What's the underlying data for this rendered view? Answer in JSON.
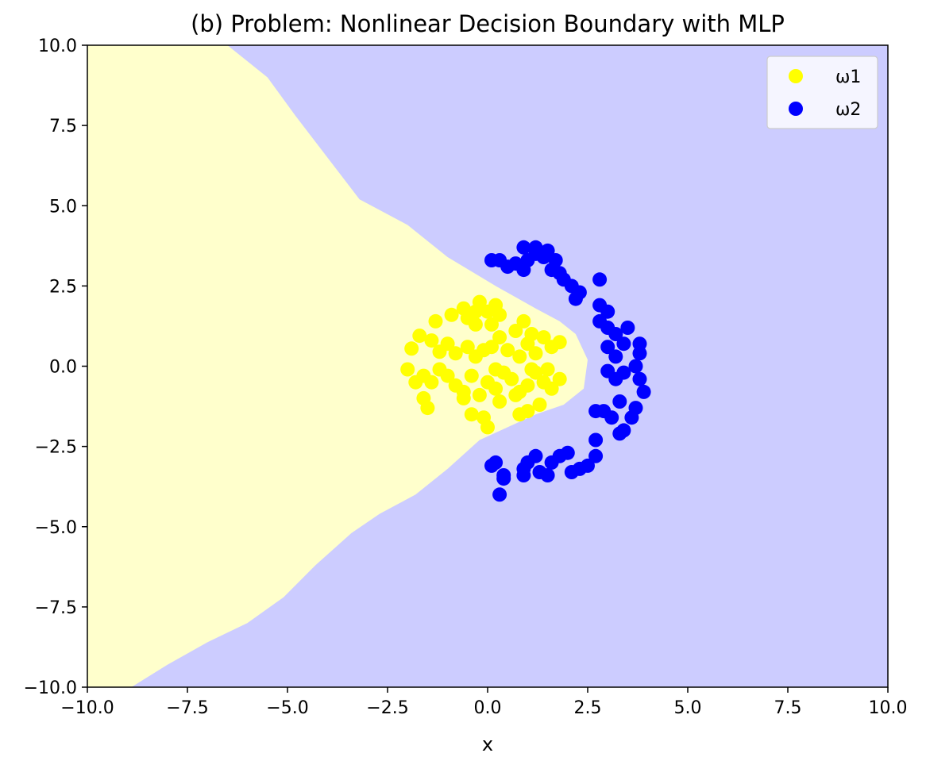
{
  "chart_data": {
    "type": "scatter",
    "title": "(b) Problem: Nonlinear Decision Boundary with MLP",
    "xlabel": "x",
    "ylabel": "",
    "xlim": [
      -10,
      10
    ],
    "ylim": [
      -10,
      10
    ],
    "xticks": [
      "−10.0",
      "−7.5",
      "−5.0",
      "−2.5",
      "0.0",
      "2.5",
      "5.0",
      "7.5",
      "10.0"
    ],
    "yticks": [
      "−10.0",
      "−7.5",
      "−5.0",
      "−2.5",
      "0.0",
      "2.5",
      "5.0",
      "7.5",
      "10.0"
    ],
    "xtick_values": [
      -10,
      -7.5,
      -5,
      -2.5,
      0,
      2.5,
      5,
      7.5,
      10
    ],
    "ytick_values": [
      -10,
      -7.5,
      -5,
      -2.5,
      0,
      2.5,
      5,
      7.5,
      10
    ],
    "grid": false,
    "legend_position": "top-right",
    "background_regions": [
      {
        "class": "ω1",
        "color": "#ffffcc"
      },
      {
        "class": "ω2",
        "color": "#ccccff"
      }
    ],
    "decision_boundary": [
      [
        -6.5,
        10
      ],
      [
        -5.5,
        9
      ],
      [
        -4.8,
        7.8
      ],
      [
        -4.0,
        6.5
      ],
      [
        -3.2,
        5.2
      ],
      [
        -2.0,
        4.4
      ],
      [
        -1.0,
        3.4
      ],
      [
        0.2,
        2.5
      ],
      [
        1.2,
        1.8
      ],
      [
        1.8,
        1.4
      ],
      [
        2.2,
        1.0
      ],
      [
        2.5,
        0.2
      ],
      [
        2.4,
        -0.7
      ],
      [
        1.9,
        -1.2
      ],
      [
        1.2,
        -1.5
      ],
      [
        0.5,
        -1.9
      ],
      [
        -0.2,
        -2.3
      ],
      [
        -1.0,
        -3.2
      ],
      [
        -1.8,
        -4.0
      ],
      [
        -2.7,
        -4.6
      ],
      [
        -3.4,
        -5.2
      ],
      [
        -4.3,
        -6.2
      ],
      [
        -5.1,
        -7.2
      ],
      [
        -6.0,
        -8.0
      ],
      [
        -7.0,
        -8.6
      ],
      [
        -8.0,
        -9.3
      ],
      [
        -8.9,
        -10
      ]
    ],
    "series": [
      {
        "name": "ω1",
        "color": "#ffff00",
        "points": [
          [
            -1.3,
            1.4
          ],
          [
            -0.9,
            1.6
          ],
          [
            -0.6,
            1.8
          ],
          [
            -0.3,
            1.7
          ],
          [
            -0.2,
            2.0
          ],
          [
            0.0,
            1.7
          ],
          [
            0.2,
            1.9
          ],
          [
            0.3,
            1.6
          ],
          [
            0.1,
            1.3
          ],
          [
            -0.3,
            1.3
          ],
          [
            -0.5,
            1.5
          ],
          [
            -1.9,
            0.55
          ],
          [
            -1.7,
            0.95
          ],
          [
            -1.4,
            0.8
          ],
          [
            -1.2,
            0.45
          ],
          [
            -1.0,
            0.7
          ],
          [
            -0.8,
            0.4
          ],
          [
            -0.5,
            0.6
          ],
          [
            -0.3,
            0.3
          ],
          [
            -0.1,
            0.5
          ],
          [
            0.1,
            0.6
          ],
          [
            0.3,
            0.9
          ],
          [
            0.5,
            0.5
          ],
          [
            0.7,
            1.1
          ],
          [
            0.9,
            1.4
          ],
          [
            1.0,
            0.7
          ],
          [
            1.2,
            0.4
          ],
          [
            1.4,
            0.9
          ],
          [
            1.6,
            0.6
          ],
          [
            1.8,
            0.75
          ],
          [
            1.1,
            1.0
          ],
          [
            0.8,
            0.3
          ],
          [
            -2.0,
            -0.1
          ],
          [
            -1.8,
            -0.5
          ],
          [
            -1.6,
            -0.3
          ],
          [
            -1.4,
            -0.5
          ],
          [
            -1.2,
            -0.1
          ],
          [
            -1.0,
            -0.3
          ],
          [
            -0.8,
            -0.6
          ],
          [
            -0.6,
            -0.8
          ],
          [
            -0.4,
            -0.3
          ],
          [
            -0.2,
            -0.9
          ],
          [
            0.0,
            -0.5
          ],
          [
            0.2,
            -0.1
          ],
          [
            0.4,
            -0.2
          ],
          [
            0.6,
            -0.4
          ],
          [
            0.8,
            -0.8
          ],
          [
            1.0,
            -0.6
          ],
          [
            1.2,
            -0.2
          ],
          [
            1.4,
            -0.5
          ],
          [
            1.6,
            -0.7
          ],
          [
            1.8,
            -0.4
          ],
          [
            1.5,
            -0.1
          ],
          [
            1.1,
            -0.1
          ],
          [
            -1.6,
            -1.0
          ],
          [
            -1.5,
            -1.3
          ],
          [
            -0.6,
            -1.0
          ],
          [
            -0.4,
            -1.5
          ],
          [
            -0.1,
            -1.6
          ],
          [
            0.0,
            -1.9
          ],
          [
            0.3,
            -1.1
          ],
          [
            0.8,
            -1.5
          ],
          [
            1.0,
            -1.4
          ],
          [
            1.3,
            -1.2
          ],
          [
            0.7,
            -0.9
          ],
          [
            0.2,
            -0.7
          ]
        ]
      },
      {
        "name": "ω2",
        "color": "#0000ff",
        "points": [
          [
            0.1,
            3.3
          ],
          [
            0.3,
            3.3
          ],
          [
            0.5,
            3.1
          ],
          [
            0.7,
            3.2
          ],
          [
            0.9,
            3.0
          ],
          [
            1.0,
            3.3
          ],
          [
            1.2,
            3.5
          ],
          [
            1.4,
            3.4
          ],
          [
            1.6,
            3.0
          ],
          [
            1.7,
            3.3
          ],
          [
            1.9,
            2.7
          ],
          [
            2.1,
            2.5
          ],
          [
            2.3,
            2.3
          ],
          [
            0.9,
            3.7
          ],
          [
            1.2,
            3.7
          ],
          [
            1.5,
            3.6
          ],
          [
            1.8,
            2.9
          ],
          [
            2.8,
            2.7
          ],
          [
            2.2,
            2.1
          ],
          [
            2.8,
            1.9
          ],
          [
            3.0,
            1.7
          ],
          [
            2.8,
            1.4
          ],
          [
            3.0,
            1.2
          ],
          [
            3.2,
            1.0
          ],
          [
            3.4,
            0.7
          ],
          [
            3.0,
            0.6
          ],
          [
            3.2,
            0.3
          ],
          [
            3.5,
            1.2
          ],
          [
            3.8,
            0.7
          ],
          [
            3.8,
            0.4
          ],
          [
            3.7,
            0.0
          ],
          [
            3.4,
            -0.2
          ],
          [
            3.2,
            -0.4
          ],
          [
            3.0,
            -0.15
          ],
          [
            3.8,
            -0.4
          ],
          [
            3.9,
            -0.8
          ],
          [
            3.7,
            -1.3
          ],
          [
            3.6,
            -1.6
          ],
          [
            3.3,
            -1.1
          ],
          [
            3.1,
            -1.6
          ],
          [
            2.9,
            -1.4
          ],
          [
            2.7,
            -1.4
          ],
          [
            3.3,
            -2.1
          ],
          [
            3.4,
            -2.0
          ],
          [
            2.7,
            -2.3
          ],
          [
            2.7,
            -2.8
          ],
          [
            2.5,
            -3.1
          ],
          [
            2.3,
            -3.2
          ],
          [
            2.1,
            -3.3
          ],
          [
            2.0,
            -2.7
          ],
          [
            1.8,
            -2.8
          ],
          [
            1.6,
            -3.0
          ],
          [
            1.5,
            -3.4
          ],
          [
            1.3,
            -3.3
          ],
          [
            1.2,
            -2.8
          ],
          [
            0.9,
            -3.2
          ],
          [
            1.0,
            -3.0
          ],
          [
            0.9,
            -3.4
          ],
          [
            0.4,
            -3.4
          ],
          [
            0.2,
            -3.0
          ],
          [
            0.1,
            -3.1
          ],
          [
            0.3,
            -4.0
          ],
          [
            0.4,
            -3.5
          ]
        ]
      }
    ]
  }
}
